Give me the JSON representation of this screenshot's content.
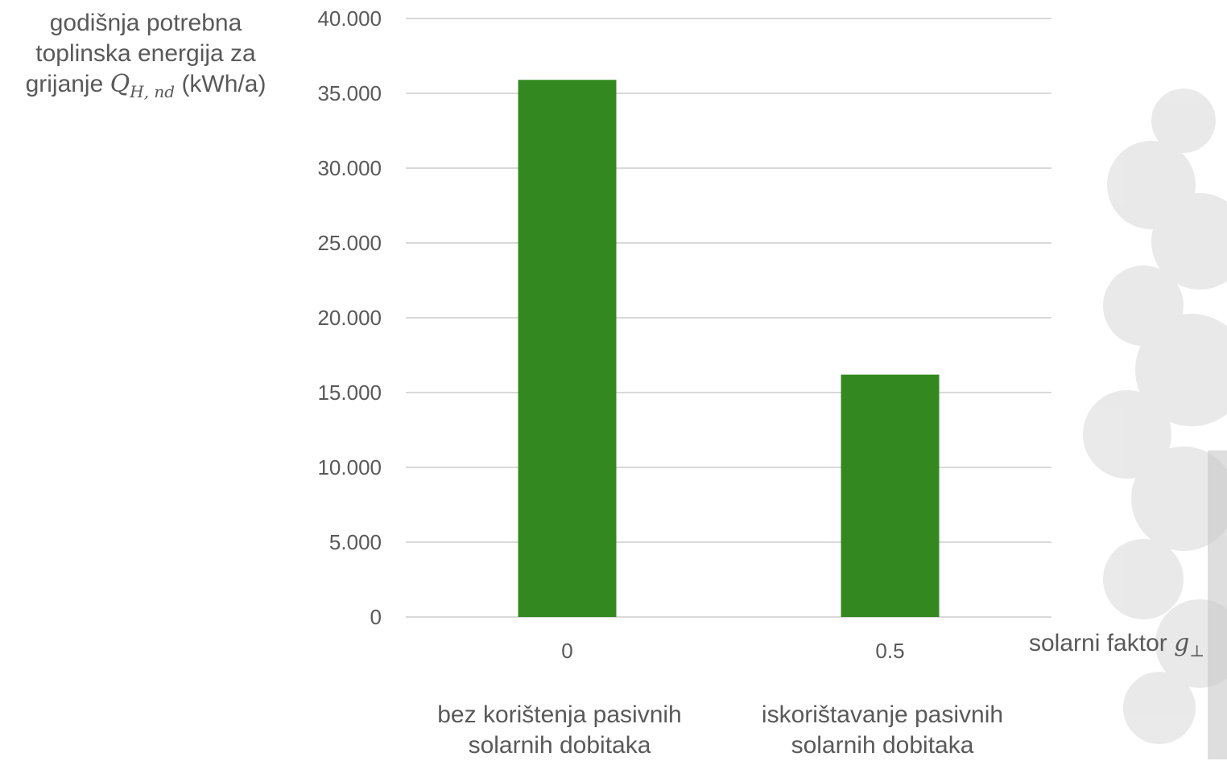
{
  "chart_data": {
    "type": "bar",
    "categories": [
      "0",
      "0.5"
    ],
    "values": [
      35900,
      16200
    ],
    "ylim": [
      0,
      40000
    ],
    "yticks": [
      "0",
      "5.000",
      "10.000",
      "15.000",
      "20.000",
      "25.000",
      "30.000",
      "35.000",
      "40.000"
    ],
    "ytick_values": [
      0,
      5000,
      10000,
      15000,
      20000,
      25000,
      30000,
      35000,
      40000
    ],
    "ylabel": {
      "line1": "godišnja potrebna",
      "line2": "toplinska energija za",
      "line3_prefix": "grijanje",
      "symbol": "Q",
      "subscript": "H, nd",
      "unit": "(kWh/a)"
    },
    "xlabel": {
      "text": "solarni faktor",
      "symbol": "g",
      "subscript": "⊥"
    },
    "category_captions": [
      {
        "line1": "bez korištenja pasivnih",
        "line2": "solarnih dobitaka"
      },
      {
        "line1": "iskorištavanje pasivnih",
        "line2": "solarnih dobitaka"
      }
    ],
    "grid": true,
    "bar_color": "#33891f",
    "grid_color": "#d9d9d9"
  }
}
